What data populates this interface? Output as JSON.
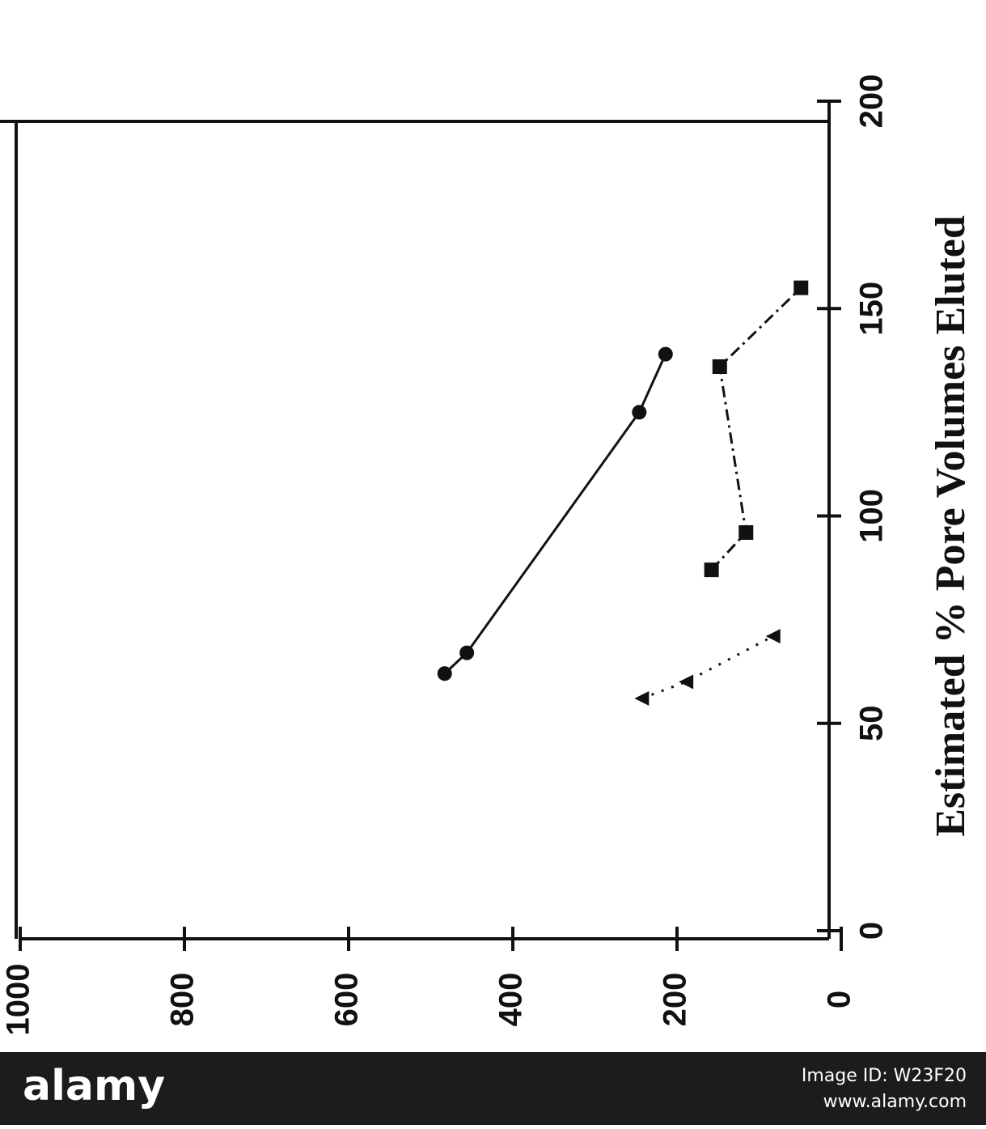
{
  "chart_data": {
    "type": "line",
    "orientation": "rotated",
    "x_label": "Estimated % Pore Volumes Eluted",
    "xlim": [
      0,
      200
    ],
    "xticks": [
      0,
      50,
      100,
      150,
      200
    ],
    "ylim": [
      0,
      1000
    ],
    "yticks": [
      0,
      200,
      400,
      600,
      800,
      1000
    ],
    "series": [
      {
        "color": "#111111",
        "marker": "circle",
        "linestyle": "solid",
        "x": [
          62,
          67,
          125,
          139
        ],
        "values": [
          483,
          456,
          246,
          214
        ]
      },
      {
        "color": "#111111",
        "marker": "square",
        "linestyle": "dashdot",
        "x": [
          87,
          96,
          136,
          155
        ],
        "values": [
          158,
          116,
          148,
          49
        ]
      },
      {
        "color": "#111111",
        "marker": "triangle",
        "linestyle": "dotted",
        "x": [
          56,
          60,
          71
        ],
        "values": [
          243,
          189,
          83
        ]
      }
    ]
  },
  "watermark": {
    "brand": "alamy",
    "image_id": "Image ID: W23F20",
    "url": "www.alamy.com"
  }
}
